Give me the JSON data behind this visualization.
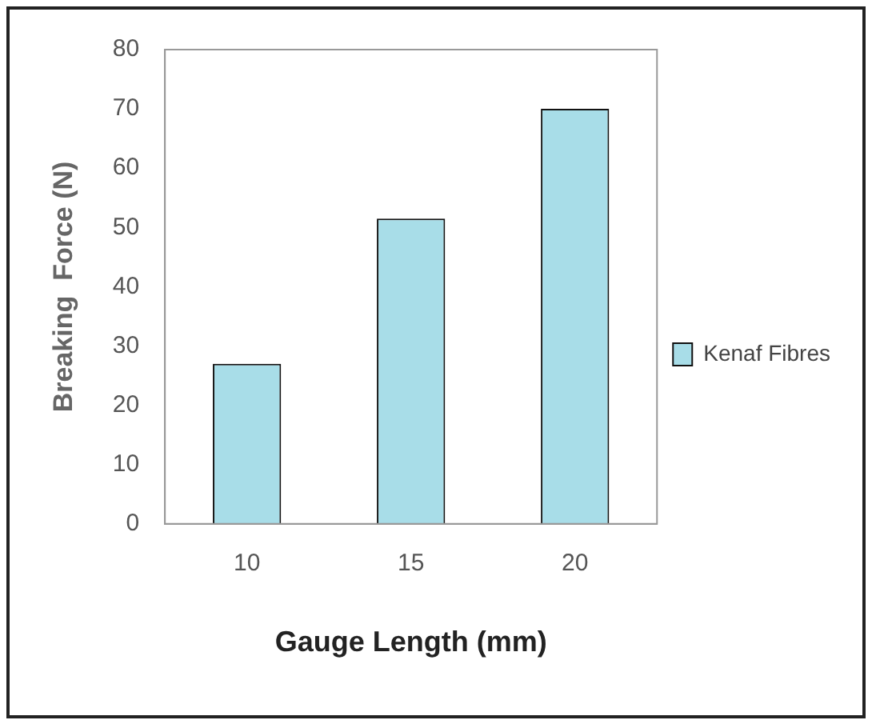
{
  "chart_data": {
    "type": "bar",
    "xlabel": "Gauge Length (mm)",
    "ylabel": "Breaking  Force (N)",
    "categories": [
      "10",
      "15",
      "20"
    ],
    "series": [
      {
        "name": "Kenaf Fibres",
        "color": "#a8dde8",
        "values": [
          27,
          51.5,
          70
        ]
      }
    ],
    "ylim": [
      0,
      80
    ],
    "yticks": [
      0,
      10,
      20,
      30,
      40,
      50,
      60,
      70,
      80
    ],
    "grid": false,
    "legend": "right"
  }
}
